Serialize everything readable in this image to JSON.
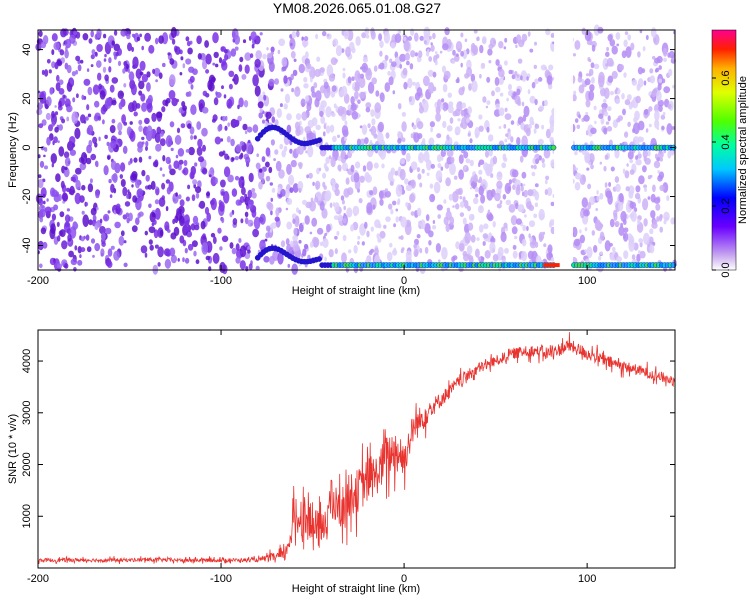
{
  "chart_data": [
    {
      "type": "heatmap",
      "title": "YM08.2026.065.01.08.G27",
      "xlabel": "Height of straight line (km)",
      "ylabel": "Frequency (Hz)",
      "xlim": [
        -200,
        148
      ],
      "ylim": [
        -50,
        48
      ],
      "xticks": [
        -200,
        -100,
        0,
        100
      ],
      "yticks": [
        -40,
        -20,
        0,
        20,
        40
      ],
      "colorbar": {
        "label": "Normalized spectral amplitude",
        "range": [
          0,
          0.75
        ],
        "ticks": [
          0.0,
          0.2,
          0.4,
          0.6
        ]
      },
      "features": {
        "noise_dense_until_km": -80,
        "signal_track_hz": 0,
        "signal_track_wiggle_start_km": -80,
        "aliased_track_hz": -48,
        "data_gap_km": [
          82,
          92
        ]
      }
    },
    {
      "type": "line",
      "xlabel": "Height of straight line (km)",
      "ylabel": "SNR (10 * v/v)",
      "xlim": [
        -200,
        148
      ],
      "ylim": [
        0,
        4600
      ],
      "xticks": [
        -200,
        -100,
        0,
        100
      ],
      "yticks": [
        1000,
        2000,
        3000,
        4000
      ],
      "series": [
        {
          "name": "SNR",
          "color": "#e8332f",
          "x": [
            -200,
            -180,
            -160,
            -140,
            -120,
            -100,
            -80,
            -65,
            -60,
            -55,
            -50,
            -45,
            -40,
            -35,
            -30,
            -25,
            -20,
            -15,
            -10,
            -5,
            0,
            5,
            10,
            15,
            20,
            30,
            40,
            50,
            60,
            70,
            80,
            90,
            100,
            110,
            120,
            130,
            140,
            148
          ],
          "y": [
            150,
            155,
            150,
            160,
            150,
            150,
            155,
            250,
            900,
            1050,
            800,
            700,
            1300,
            1100,
            1400,
            1500,
            1700,
            1800,
            2100,
            2300,
            2100,
            2700,
            2900,
            3100,
            3250,
            3600,
            3850,
            4000,
            4150,
            4200,
            4150,
            4300,
            4150,
            4000,
            3900,
            3800,
            3700,
            3600
          ],
          "noise": [
            60,
            60,
            60,
            60,
            60,
            60,
            60,
            200,
            600,
            700,
            650,
            600,
            700,
            650,
            700,
            700,
            750,
            650,
            750,
            700,
            550,
            500,
            450,
            300,
            250,
            200,
            180,
            170,
            180,
            180,
            200,
            220,
            200,
            200,
            180,
            180,
            170,
            160
          ]
        }
      ]
    }
  ]
}
